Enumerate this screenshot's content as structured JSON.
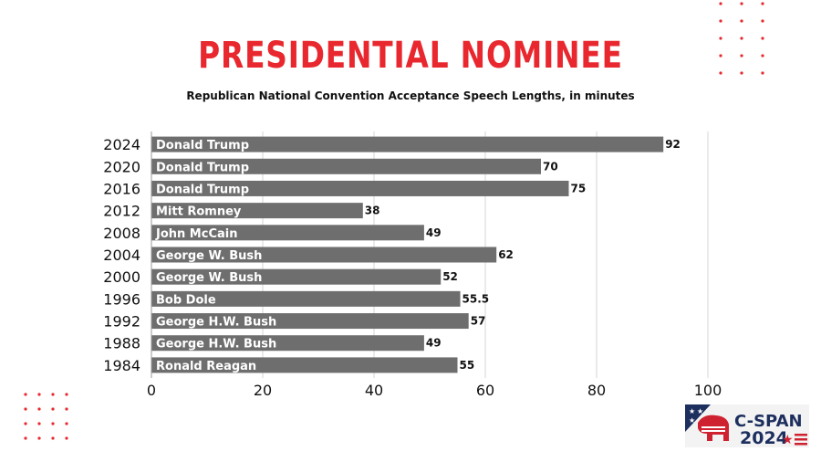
{
  "title": "PRESIDENTIAL NOMINEE",
  "subtitle": "Republican National Convention Acceptance Speech Lengths, in minutes",
  "colors": {
    "title": "#e8282e",
    "bar": "#6e6e6e",
    "grid": "#d4d4d4",
    "dots": "#e8282e",
    "logo_red": "#cf2230",
    "logo_navy": "#1d2f5e"
  },
  "chart_data": {
    "type": "bar",
    "orientation": "horizontal",
    "categories": [
      "2024",
      "2020",
      "2016",
      "2012",
      "2008",
      "2004",
      "2000",
      "1996",
      "1992",
      "1988",
      "1984"
    ],
    "bar_labels": [
      "Donald Trump",
      "Donald Trump",
      "Donald Trump",
      "Mitt Romney",
      "John McCain",
      "George W. Bush",
      "George W. Bush",
      "Bob Dole",
      "George H.W. Bush",
      "George H.W. Bush",
      "Ronald Reagan"
    ],
    "values": [
      92,
      70,
      75,
      38,
      49,
      62,
      52,
      55.5,
      57,
      49,
      55
    ],
    "value_labels": [
      "92",
      "70",
      "75",
      "38",
      "49",
      "62",
      "52",
      "55.5",
      "57",
      "49",
      "55"
    ],
    "xlim": [
      0,
      100
    ],
    "xticks": [
      0,
      20,
      40,
      60,
      80,
      100
    ],
    "grid": true
  },
  "logo": {
    "name": "C-SPAN",
    "year": "2024"
  }
}
